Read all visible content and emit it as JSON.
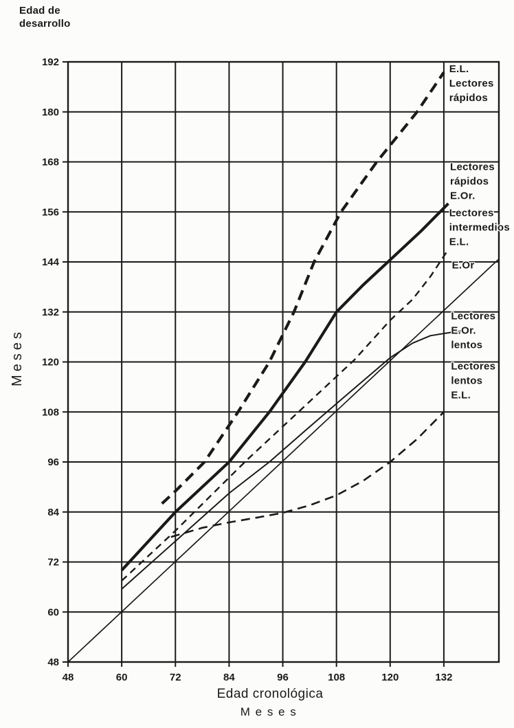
{
  "header": {
    "corner_label_lines": [
      "Edad de",
      "desarrollo"
    ]
  },
  "chart_data": {
    "type": "line",
    "title": "",
    "xlabel": "Edad cronológica",
    "xlabel_sub": "M e s e s",
    "ylabel": "Meses",
    "xlim": [
      48,
      144.3
    ],
    "ylim": [
      48,
      192
    ],
    "x_ticks": [
      48,
      60,
      72,
      84,
      96,
      108,
      120,
      132
    ],
    "y_ticks": [
      48,
      60,
      72,
      84,
      96,
      108,
      120,
      132,
      144,
      156,
      168,
      180,
      192
    ],
    "grid": true,
    "legend_position": "right-margin",
    "ink_color": "#1a1a1a",
    "paper_color": "#fcfcfa",
    "series": [
      {
        "id": "reference-eor-intermedios",
        "label": "E.Or",
        "style": "solid",
        "width": 1.7,
        "points": [
          [
            48,
            48
          ],
          [
            144.2,
            144.6
          ]
        ]
      },
      {
        "id": "el-lectores-rapidos",
        "label": "E.L. Lectores rápidos",
        "style": "dashed",
        "dash": "15 9",
        "width": 4.2,
        "points": [
          [
            69,
            86
          ],
          [
            72,
            89
          ],
          [
            78.5,
            96
          ],
          [
            86,
            108
          ],
          [
            93,
            120
          ],
          [
            98.5,
            132
          ],
          [
            103,
            144
          ],
          [
            109,
            156
          ],
          [
            117,
            168
          ],
          [
            126,
            180
          ],
          [
            132,
            189.5
          ]
        ]
      },
      {
        "id": "lectores-rapidos-eor",
        "label": "Lectores rápidos E.Or.",
        "style": "solid",
        "width": 4.2,
        "points": [
          [
            60,
            70
          ],
          [
            66,
            77
          ],
          [
            72,
            84
          ],
          [
            84,
            96
          ],
          [
            93,
            108
          ],
          [
            101,
            120
          ],
          [
            108,
            132
          ],
          [
            114,
            138.5
          ],
          [
            120,
            144.5
          ],
          [
            127,
            151.5
          ],
          [
            133,
            158
          ]
        ]
      },
      {
        "id": "lectores-intermedios-el",
        "label": "Lectores intermedios E.L.",
        "style": "dashed",
        "dash": "10 7",
        "width": 2.4,
        "points": [
          [
            60,
            67.5
          ],
          [
            72,
            79.5
          ],
          [
            80,
            88
          ],
          [
            88,
            96.5
          ],
          [
            100,
            108.5
          ],
          [
            112,
            120.5
          ],
          [
            120,
            130
          ],
          [
            125,
            135
          ],
          [
            129,
            140.5
          ],
          [
            133,
            147
          ]
        ]
      },
      {
        "id": "lectores-eor-lentos",
        "label": "Lectores E.Or. lentos",
        "style": "solid",
        "width": 2.0,
        "points": [
          [
            60,
            65.5
          ],
          [
            72,
            77
          ],
          [
            84,
            88.5
          ],
          [
            93,
            96
          ],
          [
            101,
            103.5
          ],
          [
            108,
            110
          ],
          [
            114,
            115.5
          ],
          [
            120,
            121
          ],
          [
            125,
            124.5
          ],
          [
            129,
            126.3
          ],
          [
            133,
            127
          ],
          [
            136,
            127.4
          ]
        ]
      },
      {
        "id": "lectores-lentos-el",
        "label": "Lectores lentos E.L.",
        "style": "dashed",
        "dash": "13 8",
        "width": 2.6,
        "points": [
          [
            71,
            78
          ],
          [
            78,
            80.2
          ],
          [
            84,
            81.5
          ],
          [
            90,
            82.6
          ],
          [
            96,
            83.8
          ],
          [
            102,
            85.6
          ],
          [
            108,
            88
          ],
          [
            114,
            91.5
          ],
          [
            120,
            96
          ],
          [
            126,
            101.5
          ],
          [
            132,
            108
          ]
        ]
      }
    ],
    "annotations": [
      {
        "id": "label-el-lectores-rapidos",
        "lines": [
          "E.L.",
          "Lectores",
          "rápidos"
        ],
        "x": 133.2,
        "y": 189.5
      },
      {
        "id": "label-lectores-rapidos-eor",
        "lines": [
          "Lectores",
          "rápidos",
          "E.Or."
        ],
        "x": 133.4,
        "y": 166
      },
      {
        "id": "label-lectores-intermedios-el",
        "lines": [
          "Lectores",
          "intermedios",
          "E.L."
        ],
        "x": 133.2,
        "y": 155
      },
      {
        "id": "label-eor",
        "lines": [
          "E.Or"
        ],
        "x": 133.8,
        "y": 142.4
      },
      {
        "id": "label-lectores-eor-lentos",
        "lines": [
          "Lectores",
          "E.Or.",
          "lentos"
        ],
        "x": 133.6,
        "y": 130.2
      },
      {
        "id": "label-lectores-lentos-el",
        "lines": [
          "Lectores",
          "lentos",
          "E.L."
        ],
        "x": 133.6,
        "y": 118.2
      }
    ]
  }
}
